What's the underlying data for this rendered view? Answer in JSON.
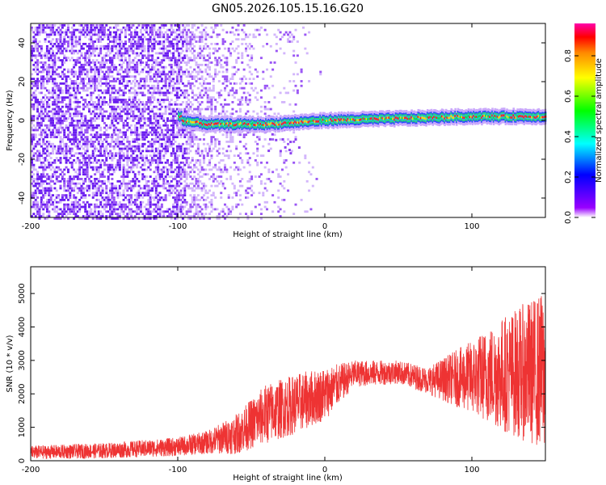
{
  "title": "GN05.2026.105.15.16.G20",
  "chart_data": [
    {
      "type": "heatmap",
      "xlabel": "Height of straight line (km)",
      "ylabel": "Frequency (Hz)",
      "xlim": [
        -200,
        150
      ],
      "ylim": [
        -50,
        50
      ],
      "x_ticks": [
        -200,
        -100,
        0,
        100
      ],
      "x_tick_labels": [
        "-200",
        "-100",
        "0",
        "100"
      ],
      "y_ticks": [
        -40,
        -20,
        0,
        20,
        40
      ],
      "y_tick_labels": [
        "-40",
        "-20",
        "0",
        "20",
        "40"
      ],
      "colorbar": {
        "label": "Normalized spectral amplitude",
        "range": [
          0,
          0.96
        ],
        "ticks": [
          0,
          0.2,
          0.4,
          0.6,
          0.8
        ],
        "tick_labels": [
          "0.0",
          "0.2",
          "0.4",
          "0.6",
          "0.8"
        ]
      },
      "description_of_features": {
        "noise_region_km": [
          -200,
          -60
        ],
        "ridge_points": [
          {
            "x": -98,
            "freq": 0
          },
          {
            "x": -80,
            "freq": -2
          },
          {
            "x": -40,
            "freq": -2
          },
          {
            "x": 0,
            "freq": 0
          },
          {
            "x": 50,
            "freq": 1
          },
          {
            "x": 100,
            "freq": 2
          },
          {
            "x": 150,
            "freq": 2
          }
        ]
      }
    },
    {
      "type": "line",
      "xlabel": "Height of straight line (km)",
      "ylabel": "SNR (10 * v/v)",
      "xlim": [
        -200,
        150
      ],
      "ylim": [
        0,
        5800
      ],
      "x_ticks": [
        -200,
        -100,
        0,
        100
      ],
      "x_tick_labels": [
        "-200",
        "-100",
        "0",
        "100"
      ],
      "y_ticks": [
        0,
        1000,
        2000,
        3000,
        4000,
        5000
      ],
      "y_tick_labels": [
        "0",
        "1000",
        "2000",
        "3000",
        "4000",
        "5000"
      ],
      "series": [
        {
          "color": "#ee3333",
          "envelope": [
            {
              "x": -200,
              "mean": 250,
              "amp": 200
            },
            {
              "x": -150,
              "mean": 300,
              "amp": 230
            },
            {
              "x": -100,
              "mean": 420,
              "amp": 280
            },
            {
              "x": -80,
              "mean": 550,
              "amp": 350
            },
            {
              "x": -60,
              "mean": 800,
              "amp": 600
            },
            {
              "x": -40,
              "mean": 1400,
              "amp": 900
            },
            {
              "x": -20,
              "mean": 1700,
              "amp": 900
            },
            {
              "x": 0,
              "mean": 2000,
              "amp": 800
            },
            {
              "x": 20,
              "mean": 2600,
              "amp": 400
            },
            {
              "x": 50,
              "mean": 2650,
              "amp": 350
            },
            {
              "x": 70,
              "mean": 2400,
              "amp": 400
            },
            {
              "x": 100,
              "mean": 2500,
              "amp": 1100
            },
            {
              "x": 120,
              "mean": 2600,
              "amp": 1700
            },
            {
              "x": 150,
              "mean": 2700,
              "amp": 2400
            }
          ]
        }
      ]
    }
  ]
}
